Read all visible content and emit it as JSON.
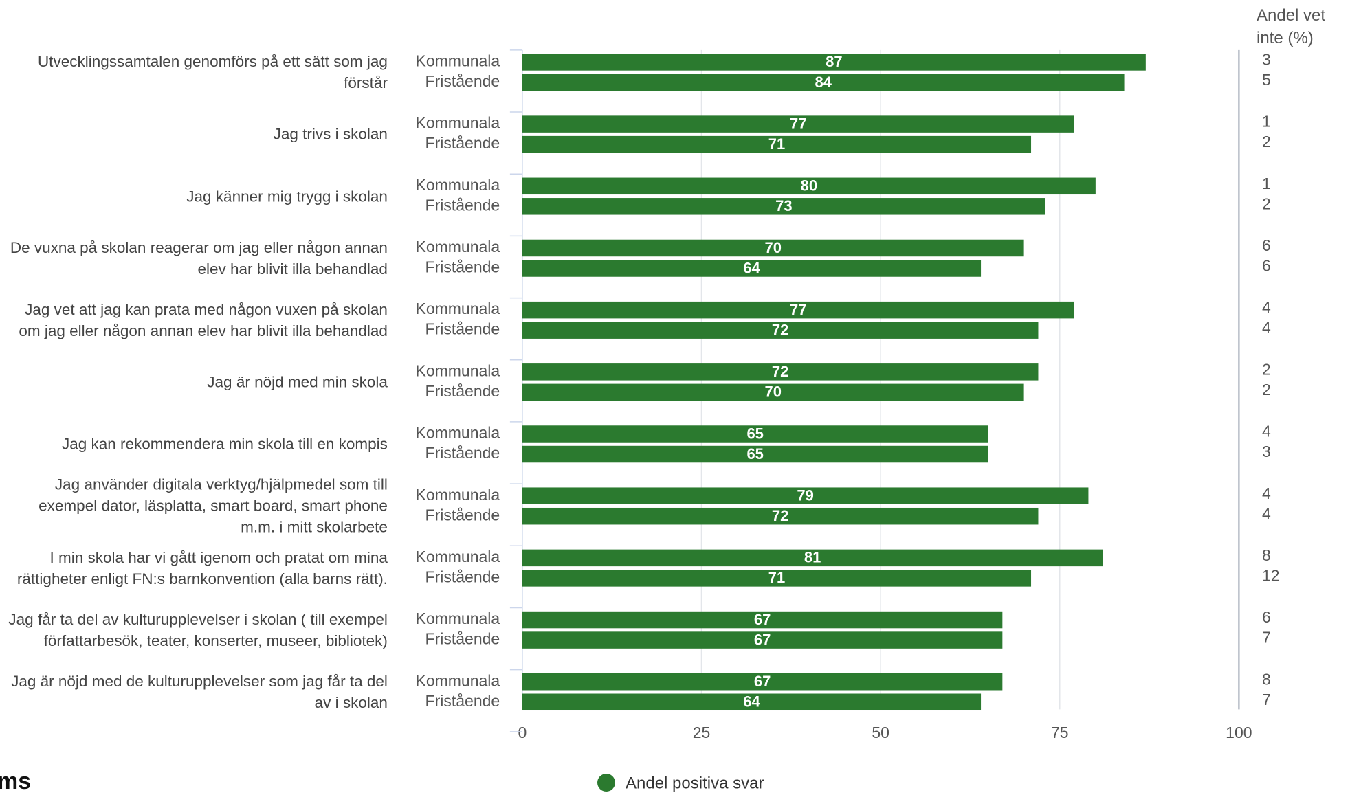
{
  "chart_data": {
    "type": "bar",
    "categories": [
      "Utvecklingssamtalen genomförs på ett sätt som jag förstår",
      "Jag trivs i skolan",
      "Jag känner mig trygg i skolan",
      "De vuxna på skolan reagerar om jag eller någon annan elev har blivit illa behandlad",
      "Jag vet att jag kan prata med någon vuxen på skolan om jag eller någon annan elev har blivit illa behandlad",
      "Jag är nöjd med min skola",
      "Jag kan rekommendera min skola till en kompis",
      "Jag använder digitala verktyg/hjälpmedel som till exempel dator, läsplatta, smart board, smart phone m.m. i mitt skolarbete",
      "I min skola har vi gått igenom och pratat om mina rättigheter enligt FN:s barnkonvention (alla barns rätt).",
      "Jag får ta del av kulturupplevelser i skolan ( till exempel författarbesök, teater, konserter, museer, bibliotek)",
      "Jag är nöjd med de kulturupplevelser som jag får ta del av i skolan"
    ],
    "groups": [
      "Kommunala",
      "Fristående"
    ],
    "values": [
      [
        87,
        84
      ],
      [
        77,
        71
      ],
      [
        80,
        73
      ],
      [
        70,
        64
      ],
      [
        77,
        72
      ],
      [
        72,
        70
      ],
      [
        65,
        65
      ],
      [
        79,
        72
      ],
      [
        81,
        71
      ],
      [
        67,
        67
      ],
      [
        67,
        64
      ]
    ],
    "dont_know_title": "Andel vet inte (%)",
    "dont_know": [
      [
        3,
        5
      ],
      [
        1,
        2
      ],
      [
        1,
        2
      ],
      [
        6,
        6
      ],
      [
        4,
        4
      ],
      [
        2,
        2
      ],
      [
        4,
        3
      ],
      [
        4,
        4
      ],
      [
        8,
        12
      ],
      [
        6,
        7
      ],
      [
        8,
        7
      ]
    ],
    "legend": "Andel positiva svar",
    "color": "#2b7a2f",
    "xlim": [
      0,
      100
    ],
    "xticks": [
      0,
      25,
      50,
      75,
      100
    ],
    "grid": true,
    "fragment": "ms"
  }
}
